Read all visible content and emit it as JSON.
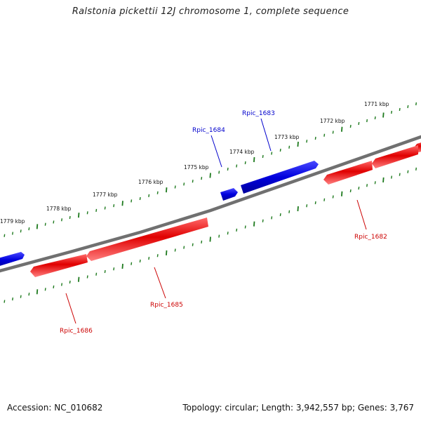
{
  "title": "Ralstonia pickettii 12J chromosome 1, complete sequence",
  "footer": {
    "accession": "Accession: NC_010682",
    "stats": "Topology: circular; Length: 3,942,557 bp; Genes: 3,767"
  },
  "scale_labels": [
    "1771 kbp",
    "1772 kbp",
    "1773 kbp",
    "1774 kbp",
    "1775 kbp",
    "1776 kbp",
    "1777 kbp",
    "1778 kbp",
    "1779 kbp"
  ],
  "genes": {
    "rpic_1683": {
      "label": "Rpic_1683",
      "strand": "forward",
      "color": "#0000cc"
    },
    "rpic_1684": {
      "label": "Rpic_1684",
      "strand": "forward",
      "color": "#0000cc"
    },
    "rpic_1682": {
      "label": "Rpic_1682",
      "strand": "reverse",
      "color": "#cc0000"
    },
    "rpic_1685": {
      "label": "Rpic_1685",
      "strand": "reverse",
      "color": "#cc0000"
    },
    "rpic_1686": {
      "label": "Rpic_1686",
      "strand": "reverse",
      "color": "#cc0000"
    }
  },
  "colors": {
    "backbone": "#808080",
    "tick": "#1e7a1e",
    "forward": "#0000cc",
    "reverse": "#cc0000"
  }
}
